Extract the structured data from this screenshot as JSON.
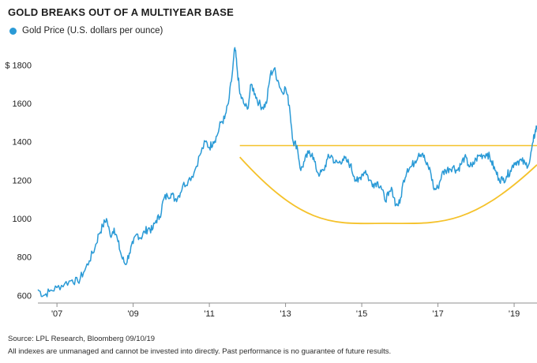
{
  "title": "GOLD BREAKS OUT OF A MULTIYEAR BASE",
  "footer": {
    "source": "Source: LPL Research, Bloomberg 09/10/19",
    "disclaimer": "All indexes are unmanaged and cannot be invested into directly. Past performance is no guarantee of future results."
  },
  "colors": {
    "series": "#2a9ad6",
    "annotation": "#f5c22b",
    "axis": "#8f8f8f",
    "grid": "#dcdcdc"
  },
  "chart_data": {
    "type": "line",
    "title": "GOLD BREAKS OUT OF A MULTIYEAR BASE",
    "xlabel": "",
    "ylabel": "",
    "ylim": [
      560,
      1900
    ],
    "xlim": [
      2006.5,
      2019.6
    ],
    "yticks": [
      600,
      800,
      1000,
      1200,
      1400,
      1600,
      1800
    ],
    "ytick_labels": [
      "600",
      "800",
      "1000",
      "1200",
      "1400",
      "1600",
      "$ 1800"
    ],
    "xticks": [
      2007,
      2009,
      2011,
      2013,
      2015,
      2017,
      2019
    ],
    "xtick_labels": [
      "'07",
      "'09",
      "'11",
      "'13",
      "'15",
      "'17",
      "'19"
    ],
    "grid": false,
    "legend_position": "top-left",
    "series": [
      {
        "name": "Gold Price (U.S. dollars per ounce)",
        "x": [
          2006.5,
          2006.65,
          2006.8,
          2007.0,
          2007.2,
          2007.4,
          2007.55,
          2007.7,
          2007.85,
          2008.0,
          2008.1,
          2008.2,
          2008.3,
          2008.4,
          2008.5,
          2008.6,
          2008.7,
          2008.8,
          2008.9,
          2009.0,
          2009.1,
          2009.2,
          2009.3,
          2009.4,
          2009.5,
          2009.6,
          2009.7,
          2009.8,
          2009.9,
          2010.0,
          2010.1,
          2010.2,
          2010.3,
          2010.45,
          2010.6,
          2010.75,
          2010.9,
          2011.0,
          2011.1,
          2011.2,
          2011.3,
          2011.4,
          2011.5,
          2011.6,
          2011.67,
          2011.72,
          2011.8,
          2011.9,
          2012.0,
          2012.1,
          2012.2,
          2012.3,
          2012.4,
          2012.5,
          2012.6,
          2012.7,
          2012.8,
          2012.9,
          2013.0,
          2013.1,
          2013.2,
          2013.3,
          2013.4,
          2013.5,
          2013.6,
          2013.7,
          2013.8,
          2013.9,
          2014.0,
          2014.1,
          2014.2,
          2014.3,
          2014.4,
          2014.5,
          2014.6,
          2014.7,
          2014.8,
          2014.9,
          2015.0,
          2015.1,
          2015.2,
          2015.3,
          2015.4,
          2015.5,
          2015.6,
          2015.7,
          2015.8,
          2015.9,
          2016.0,
          2016.1,
          2016.2,
          2016.3,
          2016.4,
          2016.5,
          2016.6,
          2016.7,
          2016.8,
          2016.9,
          2017.0,
          2017.1,
          2017.2,
          2017.3,
          2017.4,
          2017.5,
          2017.6,
          2017.7,
          2017.8,
          2017.9,
          2018.0,
          2018.1,
          2018.2,
          2018.3,
          2018.4,
          2018.5,
          2018.6,
          2018.7,
          2018.8,
          2018.9,
          2019.0,
          2019.1,
          2019.2,
          2019.3,
          2019.4,
          2019.5,
          2019.55,
          2019.6,
          2019.67,
          2019.7
        ],
        "values": [
          630,
          600,
          620,
          640,
          660,
          680,
          670,
          720,
          780,
          850,
          920,
          960,
          1000,
          910,
          950,
          880,
          800,
          760,
          820,
          870,
          920,
          900,
          930,
          950,
          940,
          990,
          1010,
          1100,
          1120,
          1130,
          1100,
          1120,
          1170,
          1200,
          1240,
          1330,
          1400,
          1370,
          1400,
          1430,
          1500,
          1520,
          1600,
          1750,
          1890,
          1800,
          1650,
          1600,
          1570,
          1700,
          1650,
          1600,
          1580,
          1600,
          1750,
          1780,
          1720,
          1660,
          1680,
          1590,
          1400,
          1380,
          1250,
          1300,
          1340,
          1340,
          1260,
          1230,
          1250,
          1310,
          1330,
          1290,
          1290,
          1310,
          1300,
          1280,
          1220,
          1190,
          1230,
          1250,
          1200,
          1180,
          1190,
          1170,
          1100,
          1120,
          1150,
          1070,
          1080,
          1200,
          1260,
          1270,
          1300,
          1340,
          1340,
          1280,
          1250,
          1150,
          1160,
          1230,
          1250,
          1260,
          1270,
          1250,
          1280,
          1320,
          1280,
          1270,
          1310,
          1330,
          1330,
          1340,
          1300,
          1250,
          1210,
          1200,
          1220,
          1250,
          1290,
          1300,
          1300,
          1280,
          1290,
          1400,
          1450,
          1480,
          1530,
          1505
        ]
      }
    ],
    "annotations": [
      {
        "type": "resistance-line",
        "y": 1380,
        "x_start": 2011.8,
        "x_end": 2019.6
      },
      {
        "type": "base-arc",
        "x_start": 2011.8,
        "x_min": 2015.65,
        "x_end": 2019.6,
        "y_start": 1320,
        "y_min": 975,
        "y_end": 1280
      }
    ]
  }
}
